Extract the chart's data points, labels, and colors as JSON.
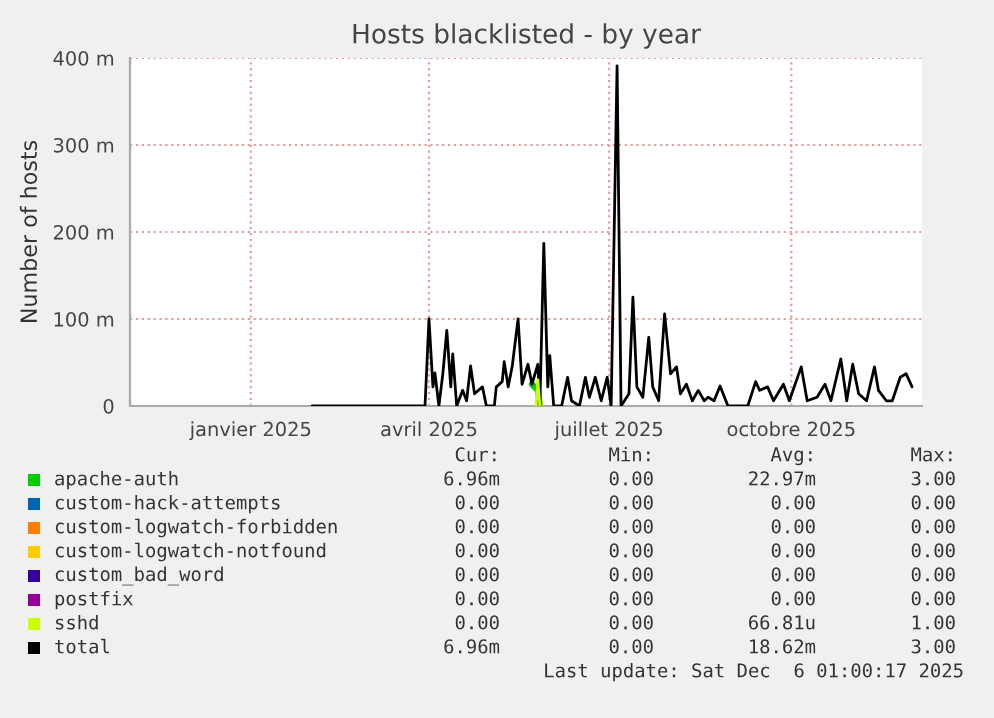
{
  "chart_data": {
    "type": "line",
    "title": "Hosts blacklisted - by year",
    "ylabel": "Number of hosts",
    "xlim": [
      "2024-11-01",
      "2025-12-06"
    ],
    "xticks": [
      {
        "value": "2025-01-01",
        "label": "janvier 2025"
      },
      {
        "value": "2025-04-01",
        "label": "avril 2025"
      },
      {
        "value": "2025-07-01",
        "label": "juillet 2025"
      },
      {
        "value": "2025-10-01",
        "label": "octobre 2025"
      }
    ],
    "ylim": [
      0,
      400
    ],
    "yticks": [
      0,
      {
        "value": 100,
        "label": "100 m"
      },
      {
        "value": 200,
        "label": "200 m"
      },
      {
        "value": 300,
        "label": "300 m"
      },
      {
        "value": 400,
        "label": "400 m"
      }
    ],
    "grid": true,
    "legend": "bottom",
    "marker": "none",
    "line_style": "solid",
    "x": [
      "2025-02-01",
      "2025-03-30",
      "2025-04-01",
      "2025-04-03",
      "2025-04-04",
      "2025-04-06",
      "2025-04-08",
      "2025-04-10",
      "2025-04-12",
      "2025-04-13",
      "2025-04-15",
      "2025-04-18",
      "2025-04-20",
      "2025-04-22",
      "2025-04-24",
      "2025-04-28",
      "2025-04-30",
      "2025-05-04",
      "2025-05-05",
      "2025-05-08",
      "2025-05-09",
      "2025-05-11",
      "2025-05-13",
      "2025-05-16",
      "2025-05-18",
      "2025-05-21",
      "2025-05-23",
      "2025-05-26",
      "2025-05-27",
      "2025-05-29",
      "2025-05-31",
      "2025-06-01",
      "2025-06-03",
      "2025-06-07",
      "2025-06-10",
      "2025-06-12",
      "2025-06-16",
      "2025-06-19",
      "2025-06-21",
      "2025-06-24",
      "2025-06-27",
      "2025-06-30",
      "2025-07-02",
      "2025-07-05",
      "2025-07-07",
      "2025-07-11",
      "2025-07-13",
      "2025-07-15",
      "2025-07-18",
      "2025-07-21",
      "2025-07-23",
      "2025-07-26",
      "2025-07-29",
      "2025-08-01",
      "2025-08-04",
      "2025-08-06",
      "2025-08-09",
      "2025-08-12",
      "2025-08-15",
      "2025-08-18",
      "2025-08-20",
      "2025-08-23",
      "2025-08-26",
      "2025-08-30",
      "2025-09-04",
      "2025-09-09",
      "2025-09-13",
      "2025-09-15",
      "2025-09-19",
      "2025-09-22",
      "2025-09-27",
      "2025-09-30",
      "2025-10-06",
      "2025-10-09",
      "2025-10-14",
      "2025-10-18",
      "2025-10-21",
      "2025-10-26",
      "2025-10-29",
      "2025-11-01",
      "2025-11-04",
      "2025-11-08",
      "2025-11-12",
      "2025-11-14",
      "2025-11-18",
      "2025-11-21",
      "2025-11-25",
      "2025-11-28",
      "2025-12-01"
    ],
    "series": [
      {
        "name": "apache-auth",
        "color": "#00cc00",
        "values": [
          null,
          null,
          null,
          null,
          null,
          null,
          null,
          null,
          null,
          null,
          null,
          null,
          null,
          null,
          null,
          null,
          null,
          null,
          null,
          null,
          null,
          null,
          null,
          null,
          null,
          null,
          25,
          18,
          0,
          null,
          null,
          null,
          null,
          null,
          null,
          null,
          null,
          null,
          null,
          null,
          null,
          null,
          null,
          null,
          null,
          null,
          null,
          null,
          null,
          null,
          null,
          null,
          null,
          null,
          null,
          null,
          null,
          null,
          null,
          null,
          null,
          null,
          null,
          null,
          null,
          null,
          null,
          null,
          null,
          null,
          null,
          null,
          null,
          null,
          null,
          null,
          null,
          null,
          null,
          null,
          null,
          null,
          null,
          null,
          null,
          null,
          null,
          null,
          null
        ]
      },
      {
        "name": "custom-hack-attempts",
        "color": "#0066b3",
        "values": [
          null,
          null,
          null,
          null,
          null,
          null,
          null,
          null,
          null,
          null,
          null,
          null,
          null,
          null,
          null,
          null,
          null,
          null,
          null,
          null,
          null,
          null,
          null,
          null,
          null,
          null,
          null,
          null,
          null,
          null,
          null,
          null,
          null,
          null,
          null,
          null,
          null,
          null,
          null,
          null,
          null,
          null,
          null,
          null,
          null,
          null,
          null,
          null,
          null,
          null,
          null,
          null,
          null,
          null,
          null,
          null,
          null,
          null,
          null,
          null,
          null,
          null,
          null,
          null,
          null,
          null,
          null,
          null,
          null,
          null,
          null,
          null,
          null,
          null,
          null,
          null,
          null,
          null,
          null,
          null,
          null,
          null,
          null,
          null,
          null,
          null,
          null,
          null,
          null
        ]
      },
      {
        "name": "custom-logwatch-forbidden",
        "color": "#ff8000",
        "values": [
          null,
          null,
          null,
          null,
          null,
          null,
          null,
          null,
          null,
          null,
          null,
          null,
          null,
          null,
          null,
          null,
          null,
          null,
          null,
          null,
          null,
          null,
          null,
          null,
          null,
          null,
          null,
          null,
          null,
          null,
          null,
          null,
          null,
          null,
          null,
          null,
          null,
          null,
          null,
          null,
          null,
          null,
          null,
          null,
          null,
          null,
          null,
          null,
          null,
          null,
          null,
          null,
          null,
          null,
          null,
          null,
          null,
          null,
          null,
          null,
          null,
          null,
          null,
          null,
          null,
          null,
          null,
          null,
          null,
          null,
          null,
          null,
          null,
          null,
          null,
          null,
          null,
          null,
          null,
          null,
          null,
          null,
          null,
          null,
          null,
          null,
          null,
          null,
          null
        ]
      },
      {
        "name": "custom-logwatch-notfound",
        "color": "#ffcc00",
        "values": [
          null,
          null,
          null,
          null,
          null,
          null,
          null,
          null,
          null,
          null,
          null,
          null,
          null,
          null,
          null,
          null,
          null,
          null,
          null,
          null,
          null,
          null,
          null,
          null,
          null,
          null,
          null,
          null,
          null,
          null,
          null,
          null,
          null,
          null,
          null,
          null,
          null,
          null,
          null,
          null,
          null,
          null,
          null,
          null,
          null,
          null,
          null,
          null,
          null,
          null,
          null,
          null,
          null,
          null,
          null,
          null,
          null,
          null,
          null,
          null,
          null,
          null,
          null,
          null,
          null,
          null,
          null,
          null,
          null,
          null,
          null,
          null,
          null,
          null,
          null,
          null,
          null,
          null,
          null,
          null,
          null,
          null,
          null,
          null,
          null,
          null,
          null,
          null,
          null
        ]
      },
      {
        "name": "custom_bad_word",
        "color": "#330099",
        "values": [
          null,
          null,
          null,
          null,
          null,
          null,
          null,
          null,
          null,
          null,
          null,
          null,
          null,
          null,
          null,
          null,
          null,
          null,
          null,
          null,
          null,
          null,
          null,
          null,
          null,
          null,
          null,
          null,
          null,
          null,
          null,
          null,
          null,
          null,
          null,
          null,
          null,
          null,
          null,
          null,
          null,
          null,
          null,
          null,
          null,
          null,
          null,
          null,
          null,
          null,
          null,
          null,
          null,
          null,
          null,
          null,
          null,
          null,
          null,
          null,
          null,
          null,
          null,
          null,
          null,
          null,
          null,
          null,
          null,
          null,
          null,
          null,
          null,
          null,
          null,
          null,
          null,
          null,
          null,
          null,
          null,
          null,
          null,
          null,
          null,
          null,
          null,
          null,
          null
        ]
      },
      {
        "name": "postfix",
        "color": "#990099",
        "values": [
          null,
          null,
          null,
          null,
          null,
          null,
          null,
          null,
          null,
          null,
          null,
          null,
          null,
          null,
          null,
          null,
          null,
          null,
          null,
          null,
          null,
          null,
          null,
          null,
          null,
          null,
          null,
          null,
          null,
          null,
          null,
          null,
          null,
          null,
          null,
          null,
          null,
          null,
          null,
          null,
          null,
          null,
          null,
          null,
          null,
          null,
          null,
          null,
          null,
          null,
          null,
          null,
          null,
          null,
          null,
          null,
          null,
          null,
          null,
          null,
          null,
          null,
          null,
          null,
          null,
          null,
          null,
          null,
          null,
          null,
          null,
          null,
          null,
          null,
          null,
          null,
          null,
          null,
          null,
          null,
          null,
          null,
          null,
          null,
          null,
          null,
          null,
          null,
          null
        ]
      },
      {
        "name": "sshd",
        "color": "#ccff00",
        "x": [
          "2025-05-25",
          "2025-05-26",
          "2025-05-27"
        ],
        "values": [
          0,
          30,
          0
        ]
      },
      {
        "name": "total",
        "color": "#000000",
        "values": [
          0,
          0,
          100,
          22,
          38,
          0,
          37,
          87,
          22,
          60,
          0,
          18,
          6,
          46,
          14,
          22,
          0,
          0,
          22,
          28,
          51,
          22,
          45,
          100,
          25,
          48,
          25,
          48,
          0,
          187,
          22,
          58,
          0,
          0,
          33,
          6,
          0,
          33,
          10,
          33,
          6,
          33,
          0,
          391,
          0,
          14,
          125,
          22,
          10,
          79,
          22,
          6,
          106,
          37,
          45,
          14,
          25,
          6,
          18,
          6,
          10,
          6,
          23,
          0,
          0,
          0,
          28,
          18,
          22,
          6,
          25,
          6,
          45,
          6,
          10,
          25,
          6,
          54,
          6,
          48,
          14,
          6,
          45,
          18,
          6,
          6,
          33,
          37,
          22
        ]
      }
    ],
    "annotations": [
      "Cur:",
      "Min:",
      "Avg:",
      "Max:",
      "6.96m",
      "0.00",
      "22.97m",
      "3.00",
      "0.00",
      "0.00",
      "0.00",
      "0.00",
      "0.00",
      "0.00",
      "0.00",
      "0.00",
      "0.00",
      "0.00",
      "0.00",
      "0.00",
      "0.00",
      "0.00",
      "0.00",
      "0.00",
      "0.00",
      "0.00",
      "0.00",
      "0.00",
      "0.00",
      "0.00",
      "66.81u",
      "1.00",
      "6.96m",
      "0.00",
      "18.62m",
      "3.00",
      "Last update: Sat Dec  6 01:00:17 2025"
    ]
  }
}
